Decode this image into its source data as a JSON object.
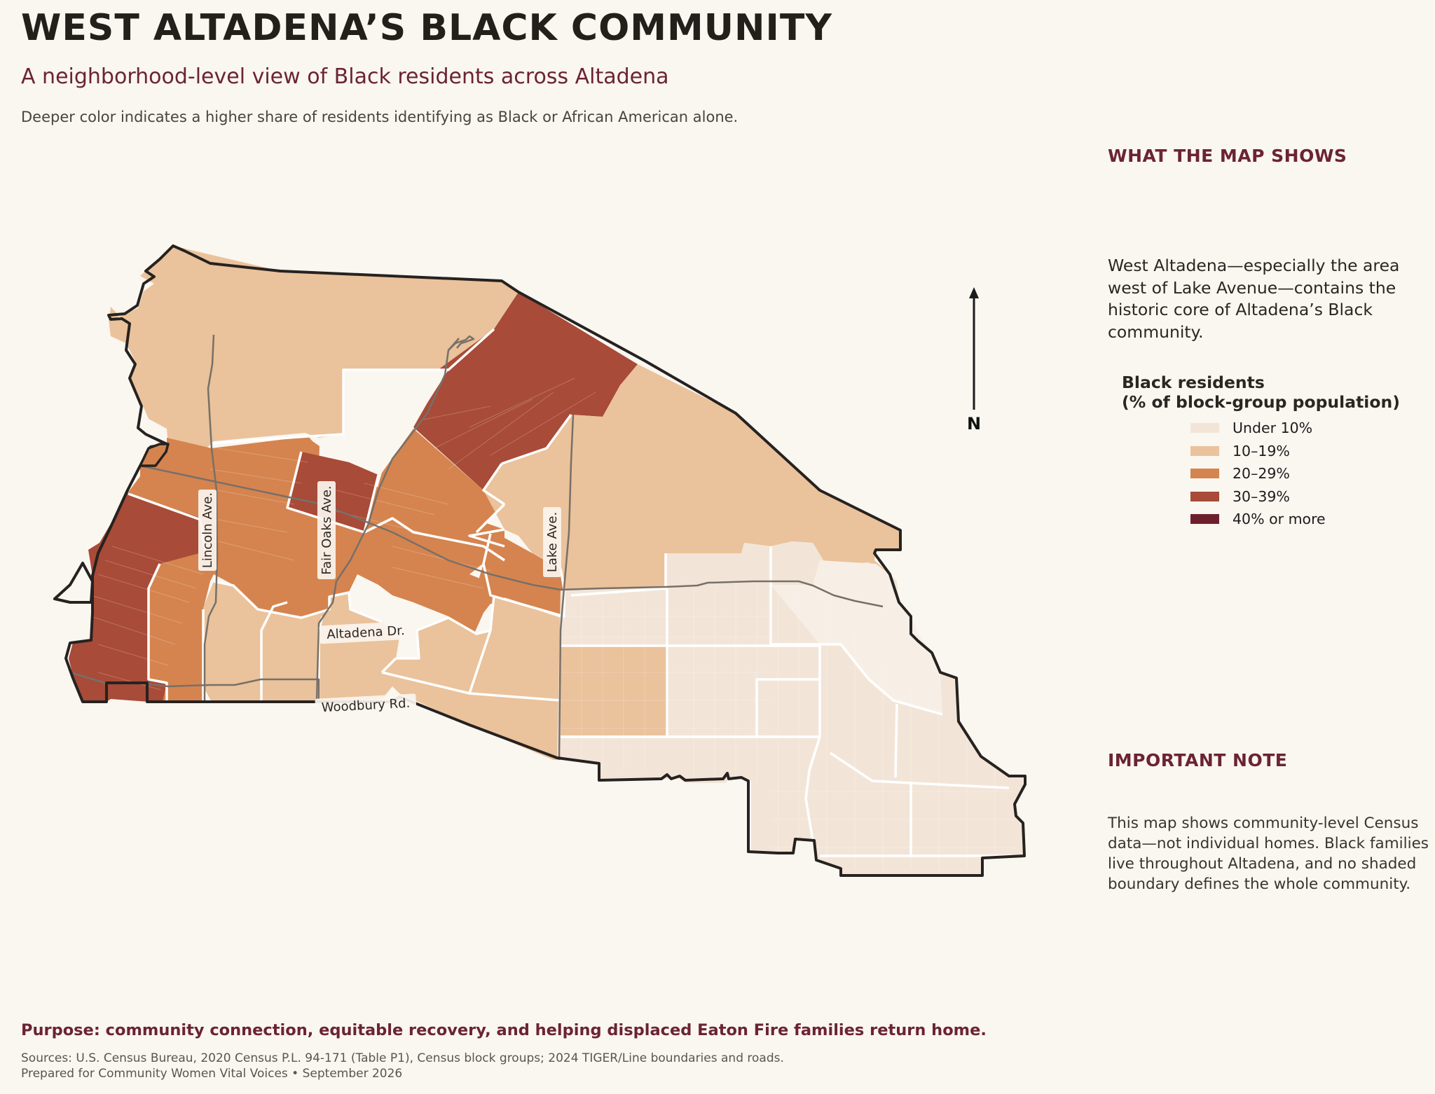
{
  "header": {
    "title": "WEST ALTADENA’S BLACK COMMUNITY",
    "subtitle": "A neighborhood-level view of Black residents across Altadena",
    "description": "Deeper color indicates a higher share of residents identifying as Black or African American alone."
  },
  "map": {
    "roads": {
      "lincoln": "Lincoln Ave.",
      "fair_oaks": "Fair Oaks Ave.",
      "lake": "Lake Ave.",
      "altadena": "Altadena Dr.",
      "woodbury": "Woodbury Rd."
    },
    "north_label": "N",
    "region_shares": {
      "northwest_hills": "10–19%",
      "far_west_strip": "30–39%",
      "far_west_south": "30–39%",
      "lincoln_corridor": "20–29%",
      "fair_oaks_north": "30–39%",
      "fair_oaks_band": "20–29%",
      "northeast_canyon": "30–39%",
      "north_of_lake": "10–19%",
      "south_of_altadena_dr": "10–19%",
      "east_foothills": "10–19%",
      "east_altadena": "Under 10%"
    }
  },
  "side": {
    "what_heading": "WHAT THE MAP SHOWS",
    "what_body": "West Altadena—especially the area west of Lake Avenue—contains the historic core of Altadena’s Black community.",
    "note_heading": "IMPORTANT NOTE",
    "note_body": "This map shows community-level Census data—not individual homes. Black families live throughout Altadena, and no shaded boundary defines the whole community."
  },
  "legend": {
    "title_line1": "Black residents",
    "title_line2": "(% of block-group population)",
    "items": [
      {
        "label": "Under 10%",
        "color": "#f2e5d8"
      },
      {
        "label": "10–19%",
        "color": "#eac29b"
      },
      {
        "label": "20–29%",
        "color": "#d5844f"
      },
      {
        "label": "30–39%",
        "color": "#a84b38"
      },
      {
        "label": "40% or more",
        "color": "#6e1f2e"
      }
    ]
  },
  "footer": {
    "purpose": "Purpose: community connection, equitable recovery, and helping displaced Eaton Fire families return home.",
    "sources_line1": "Sources: U.S. Census Bureau, 2020 Census P.L. 94-171 (Table P1), Census block groups; 2024 TIGER/Line boundaries and roads.",
    "sources_line2": "Prepared for Community Women Vital Voices • September 2026"
  }
}
